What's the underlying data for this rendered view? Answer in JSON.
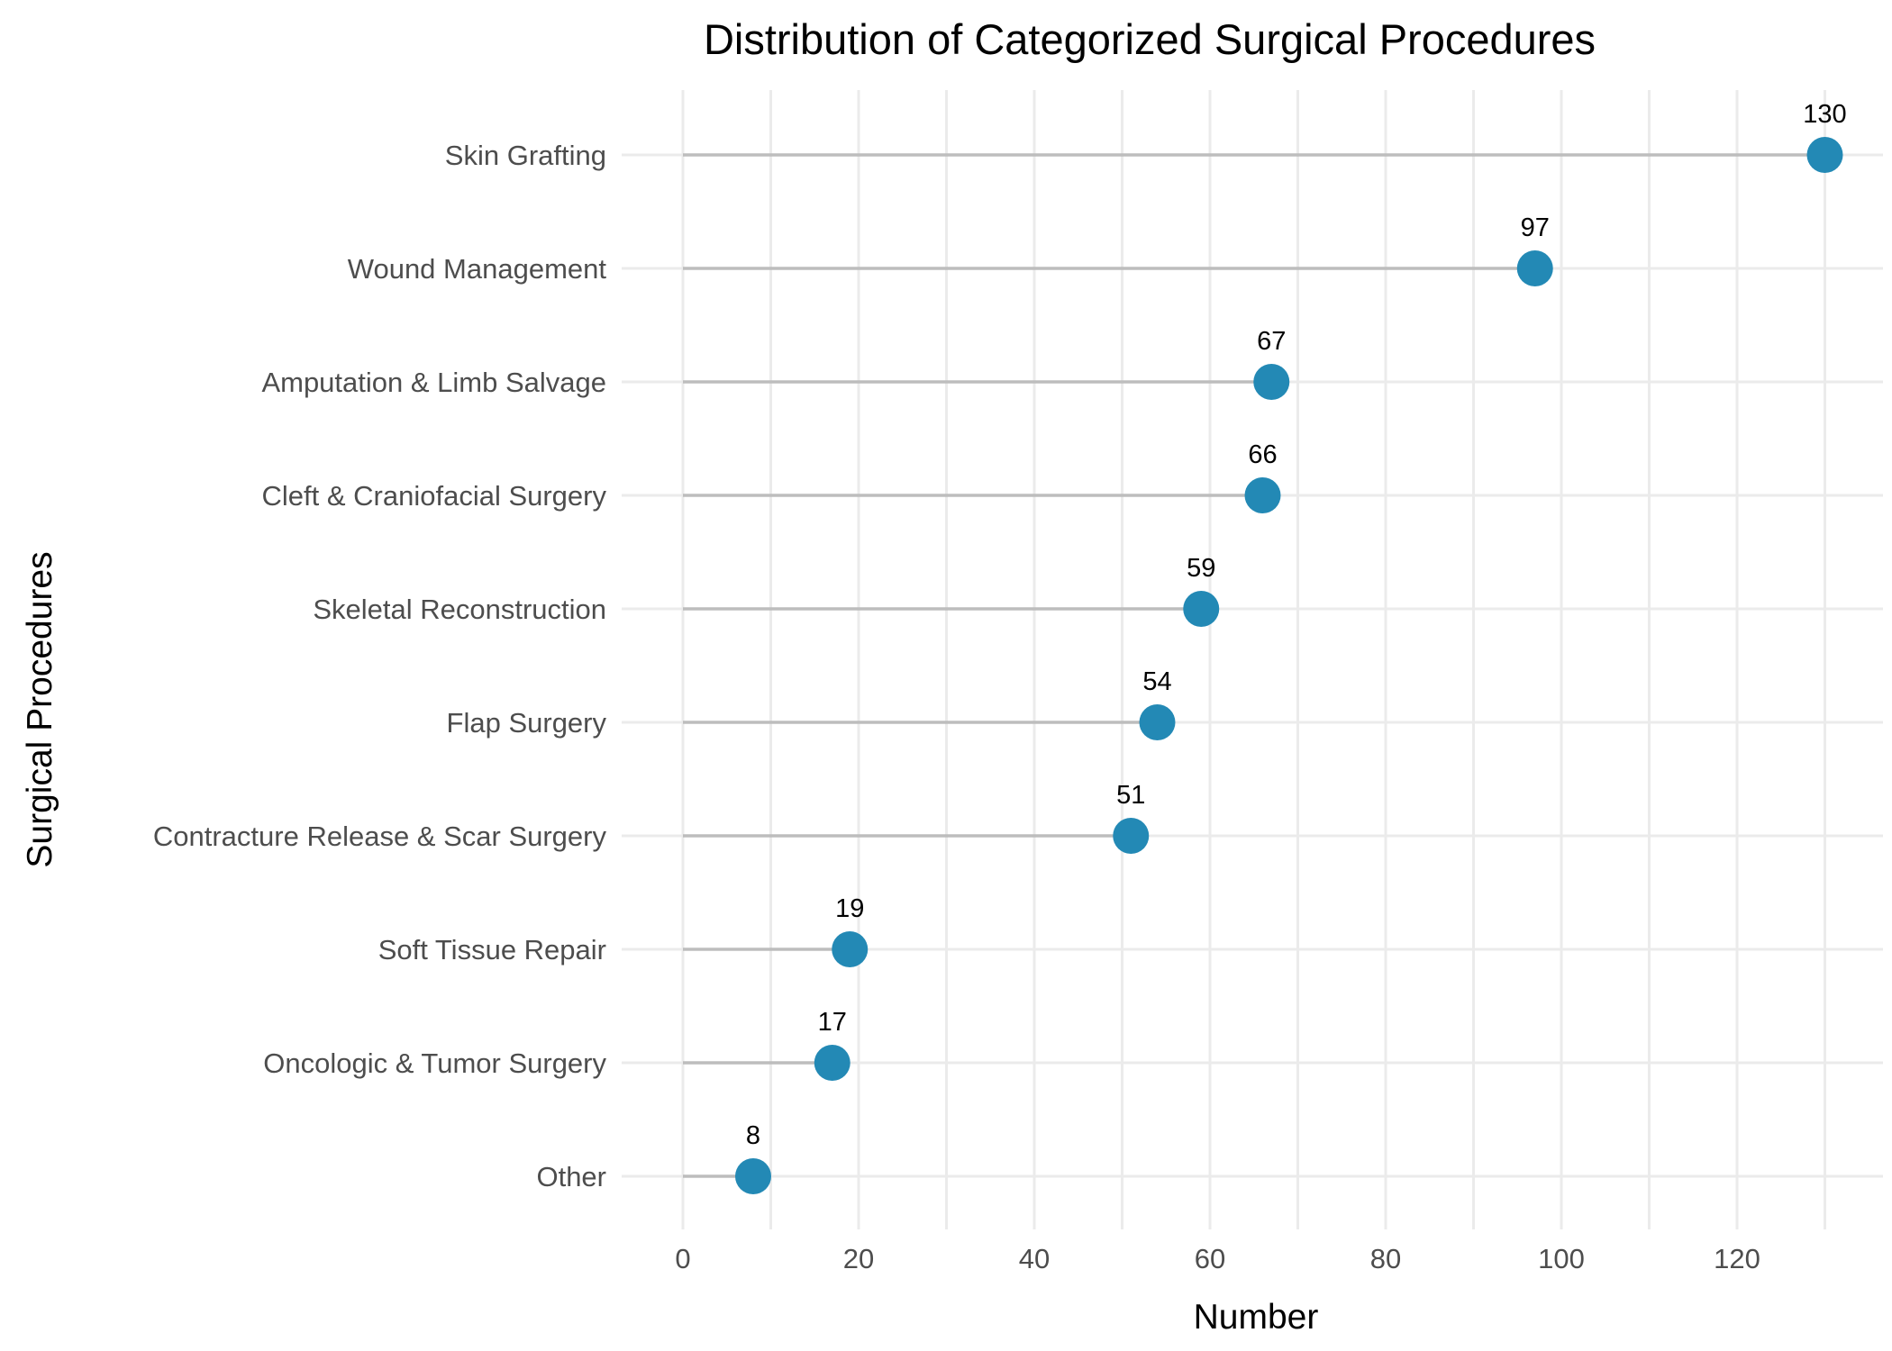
{
  "chart_data": {
    "type": "lollipop",
    "title": "Distribution of Categorized Surgical Procedures",
    "xlabel": "Number",
    "ylabel": "Surgical Procedures",
    "xlim": [
      0,
      130
    ],
    "xticks": [
      0,
      20,
      40,
      60,
      80,
      100,
      120
    ],
    "grid": true,
    "point_color": "#2389b5",
    "stem_color": "#bdbdbd",
    "categories": [
      "Skin Grafting",
      "Wound Management",
      "Amputation & Limb Salvage",
      "Cleft & Craniofacial Surgery",
      "Skeletal Reconstruction",
      "Flap Surgery",
      "Contracture Release & Scar Surgery",
      "Soft Tissue Repair",
      "Oncologic & Tumor Surgery",
      "Other"
    ],
    "values": [
      130,
      97,
      67,
      66,
      59,
      54,
      51,
      19,
      17,
      8
    ]
  }
}
